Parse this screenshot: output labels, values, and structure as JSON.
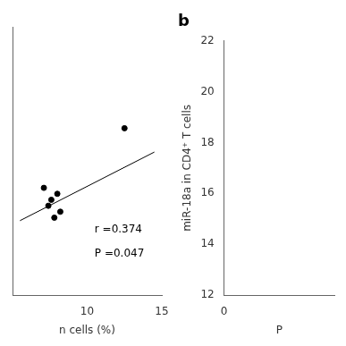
{
  "chart_data": [
    {
      "type": "scatter",
      "xlabel": "n cells (%)",
      "xlim": [
        5,
        15
      ],
      "ylim": [
        17.5,
        22
      ],
      "xticks": [
        10,
        15
      ],
      "yticks": [],
      "tick_labels": "x",
      "grid": false,
      "series": [
        {
          "type": "scatter",
          "color": "#000000",
          "marker": "circle",
          "x": [
            7.1,
            7.4,
            7.6,
            7.8,
            8.0,
            8.2,
            12.5
          ],
          "values": [
            19.3,
            19.0,
            19.1,
            18.8,
            19.2,
            18.9,
            20.3
          ]
        },
        {
          "type": "line",
          "color": "#000000",
          "line_style": "solid",
          "x": [
            5.5,
            14.5
          ],
          "values": [
            18.75,
            19.9
          ]
        }
      ],
      "annotations": [
        {
          "text": "r =0.374",
          "x": 10.5,
          "y": 18.6
        },
        {
          "text": "P =0.047",
          "x": 10.5,
          "y": 18.2
        }
      ]
    },
    {
      "type": "scatter",
      "title": "b",
      "xlabel": "P",
      "ylabel": "miR-18a in CD4⁺ T cells",
      "xlim": [
        0,
        15
      ],
      "ylim": [
        12,
        22
      ],
      "xticks": [
        0
      ],
      "yticks": [
        12,
        14,
        16,
        18,
        20,
        22
      ],
      "grid": false,
      "series": []
    }
  ]
}
